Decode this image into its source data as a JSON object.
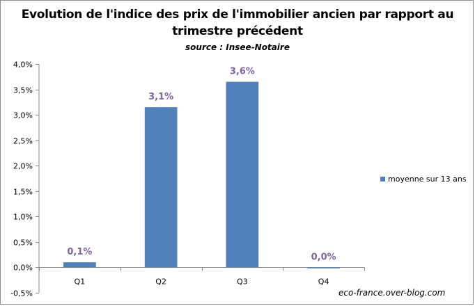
{
  "chart_data": {
    "type": "bar",
    "title_lines": [
      "Evolution de l'indice des prix de l'immobilier ancien par rapport au",
      "trimestre précédent"
    ],
    "subtitle": "source : Insee-Notaire",
    "categories": [
      "Q1",
      "Q2",
      "Q3",
      "Q4"
    ],
    "series": [
      {
        "name": "moyenne sur 13 ans",
        "values": [
          0.1,
          3.15,
          3.65,
          -0.02
        ]
      }
    ],
    "data_labels": [
      "0,1%",
      "3,1%",
      "3,6%",
      "0,0%"
    ],
    "ylim": [
      -0.5,
      4.0
    ],
    "y_ticks": [
      -0.5,
      0.0,
      0.5,
      1.0,
      1.5,
      2.0,
      2.5,
      3.0,
      3.5,
      4.0
    ],
    "y_tick_labels": [
      "-0,5%",
      "0,0%",
      "0,5%",
      "1,0%",
      "1,5%",
      "2,0%",
      "2,5%",
      "3,0%",
      "3,5%",
      "4,0%"
    ],
    "xlabel": "",
    "ylabel": "",
    "grid": false,
    "legend_position": "right",
    "bar_color": "#4f81bd",
    "label_color": "#8064a2"
  },
  "watermark": "eco-france.over-blog.com"
}
